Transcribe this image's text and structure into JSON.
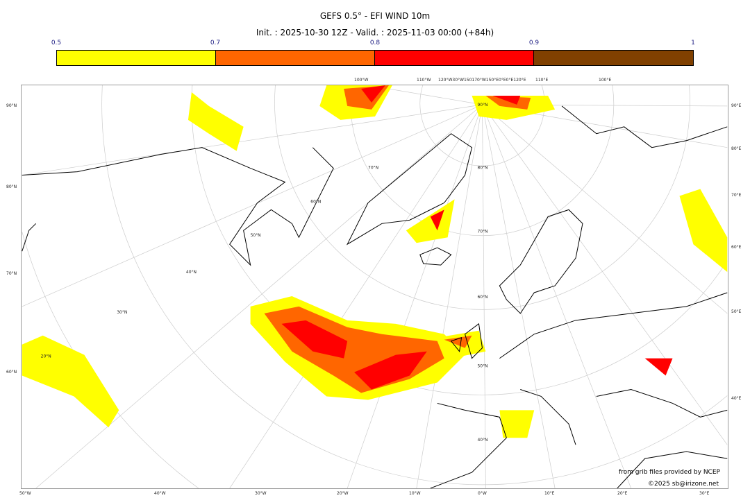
{
  "title": "GEFS 0.5° - EFI WIND 10m",
  "subtitle": "Init. : 2025-10-30 12Z - Valid. : 2025-11-03 00:00 (+84h)",
  "colorbar": {
    "ticks": [
      "0.5",
      "0.7",
      "0.8",
      "0.9",
      "1"
    ],
    "colors": [
      "#ffff00",
      "#ff6600",
      "#ff0000",
      "#804000"
    ]
  },
  "axes": {
    "bottom": [
      "50°W",
      "40°W",
      "30°W",
      "20°W",
      "10°W",
      "0°W",
      "10°E",
      "20°E",
      "30°E"
    ],
    "left": [
      "90°N",
      "80°N",
      "70°N",
      "60°N"
    ],
    "right": [
      "90°E",
      "80°E",
      "70°E",
      "60°E",
      "50°E",
      "40°E"
    ],
    "top": [
      "100°W",
      "110°W",
      "120°W30°W150170°W150°E0°E0°E120°E",
      "110°E",
      "100°E"
    ],
    "inner_lat": [
      "90°N",
      "80°N",
      "70°N",
      "60°N",
      "50°N",
      "40°N",
      "70°N",
      "60°N",
      "50°N",
      "40°N",
      "30°N",
      "20°N"
    ]
  },
  "credits": {
    "source": "from grib files provided by NCEP",
    "copyright": "©2025 sb@irizone.net"
  }
}
